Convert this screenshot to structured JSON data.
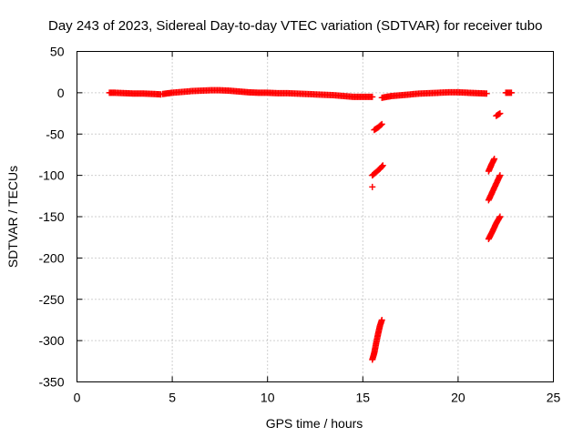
{
  "chart_data": {
    "type": "scatter",
    "title": "Day 243 of 2023, Sidereal Day-to-day VTEC variation (SDTVAR) for receiver tubo",
    "xlabel": "GPS time / hours",
    "ylabel": "SDTVAR / TECUs",
    "xlim": [
      0,
      25
    ],
    "ylim": [
      -350,
      50
    ],
    "xticks": [
      0,
      5,
      10,
      15,
      20,
      25
    ],
    "yticks": [
      50,
      0,
      -50,
      -100,
      -150,
      -200,
      -250,
      -300,
      -350
    ],
    "grid": true,
    "legend": "none",
    "marker": "plus",
    "color": "#ff0000",
    "segments": [
      {
        "x": [
          1.7,
          2.0,
          2.5,
          3.0,
          3.5,
          4.0,
          4.4
        ],
        "y": [
          0,
          0,
          -0.5,
          -1,
          -1,
          -1.5,
          -2
        ]
      },
      {
        "x": [
          4.5,
          5.0,
          5.5,
          6.0,
          6.5,
          7.0,
          7.5,
          8.0,
          8.5,
          9.0,
          9.5,
          10.0,
          10.5,
          11.0,
          11.5,
          12.0,
          12.5,
          13.0,
          13.5,
          14.0,
          14.5,
          15.0,
          15.5
        ],
        "y": [
          -1.5,
          0,
          1,
          2,
          2.5,
          3,
          3,
          2.5,
          1.5,
          0.5,
          0,
          0,
          -0.5,
          -0.5,
          -1,
          -1.5,
          -2,
          -2.5,
          -3,
          -4,
          -5,
          -5,
          -5
        ]
      },
      {
        "x": [
          16.0,
          16.5,
          17.0,
          17.5,
          18.0,
          18.5,
          19.0,
          19.5,
          20.0,
          20.5,
          21.0,
          21.5
        ],
        "y": [
          -6,
          -4,
          -3,
          -2,
          -1,
          -0.5,
          0,
          0.5,
          0.5,
          0,
          -0.5,
          -1
        ]
      },
      {
        "x": [
          22.5,
          22.8
        ],
        "y": [
          0,
          0
        ]
      },
      {
        "x": [
          15.6,
          15.8,
          16.0
        ],
        "y": [
          -45,
          -42,
          -38
        ]
      },
      {
        "x": [
          15.5,
          15.7,
          15.9,
          16.05
        ],
        "y": [
          -100,
          -96,
          -92,
          -88
        ]
      },
      {
        "x": [
          15.5
        ],
        "y": [
          -114
        ]
      },
      {
        "x": [
          15.5,
          15.6,
          15.7,
          15.8,
          15.9,
          16.0
        ],
        "y": [
          -323,
          -315,
          -303,
          -292,
          -282,
          -275
        ]
      },
      {
        "x": [
          22.0,
          22.2
        ],
        "y": [
          -28,
          -25
        ]
      },
      {
        "x": [
          21.6,
          21.75,
          21.9
        ],
        "y": [
          -95,
          -87,
          -80
        ]
      },
      {
        "x": [
          21.6,
          21.8,
          22.0,
          22.2
        ],
        "y": [
          -130,
          -120,
          -110,
          -100
        ]
      },
      {
        "x": [
          21.6,
          21.8,
          22.0,
          22.2
        ],
        "y": [
          -177,
          -168,
          -158,
          -150
        ]
      }
    ]
  }
}
